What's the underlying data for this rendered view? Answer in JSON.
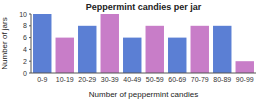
{
  "chart_data": {
    "type": "bar",
    "title": "Peppermint candies per jar",
    "xlabel": "Number of peppermint candies",
    "ylabel": "Number of jars",
    "categories": [
      "0-9",
      "10-19",
      "20-29",
      "30-39",
      "40-49",
      "50-59",
      "60-69",
      "70-79",
      "80-89",
      "90-99"
    ],
    "values": [
      10,
      6,
      8,
      10,
      6,
      8,
      6,
      8,
      8,
      2
    ],
    "colors": [
      "#5b7fd4",
      "#c87dc8",
      "#5b7fd4",
      "#c87dc8",
      "#5b7fd4",
      "#c87dc8",
      "#5b7fd4",
      "#c87dc8",
      "#5b7fd4",
      "#c87dc8"
    ],
    "ylim": [
      0,
      10
    ],
    "yticks": [
      0,
      2,
      4,
      6,
      8,
      10
    ],
    "grid": false
  }
}
